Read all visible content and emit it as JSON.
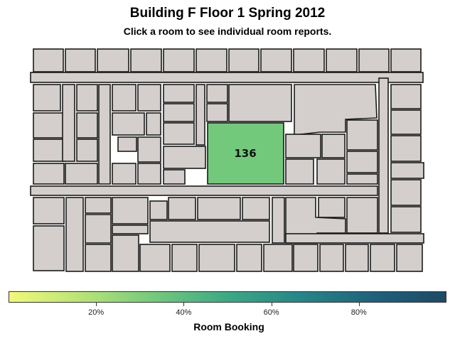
{
  "header": {
    "title": "Building F Floor 1 Spring 2012",
    "subtitle": "Click a room to see individual room reports."
  },
  "map": {
    "highlighted_room": {
      "label": "136",
      "booking_fraction": 0.46
    },
    "colors": {
      "room_default": "#d4cfcc",
      "highlight": "#72c97c",
      "outline": "#1a1a1a"
    }
  },
  "legend": {
    "title": "Room Booking",
    "gradient_colors": [
      "#f2f879",
      "#b7e476",
      "#72c97c",
      "#3ca985",
      "#268688",
      "#1f627c",
      "#1c4a66"
    ],
    "ticks": [
      "20%",
      "40%",
      "60%",
      "80%"
    ],
    "tick_values": [
      0.2,
      0.4,
      0.6,
      0.8
    ]
  }
}
